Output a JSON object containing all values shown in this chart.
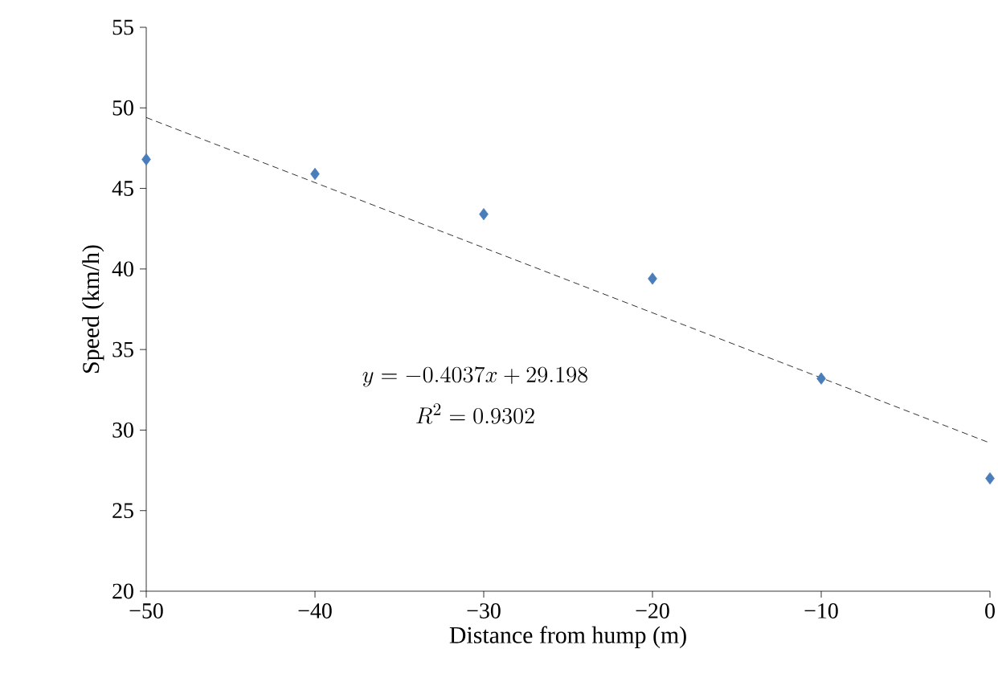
{
  "chart_data": {
    "type": "scatter",
    "xlabel": "Distance from hump (m)",
    "ylabel": "Speed (km/h)",
    "x": [
      -50,
      -40,
      -30,
      -20,
      -10,
      0
    ],
    "series": [
      {
        "color": "#4a7ebb",
        "marker": "diamond",
        "values": [
          46.8,
          45.9,
          43.4,
          39.4,
          33.2,
          27.0
        ]
      },
      {
        "type": "line",
        "color": "#000000",
        "line_style": "dashed",
        "marker": "none",
        "x": [
          -50,
          0
        ],
        "values": [
          49.4,
          29.2
        ]
      }
    ],
    "xlim": [
      -50,
      0
    ],
    "ylim": [
      20,
      55
    ],
    "xticks": [
      {
        "value": -50,
        "label": "−50"
      },
      {
        "value": -40,
        "label": "−40"
      },
      {
        "value": -30,
        "label": "−30"
      },
      {
        "value": -20,
        "label": "−20"
      },
      {
        "value": -10,
        "label": "−10"
      },
      0
    ],
    "yticks": [
      20,
      25,
      30,
      35,
      40,
      45,
      50,
      55
    ],
    "annotations": [
      "y = -0.4037x + 29.198",
      "R^2 = 0.9302"
    ]
  }
}
